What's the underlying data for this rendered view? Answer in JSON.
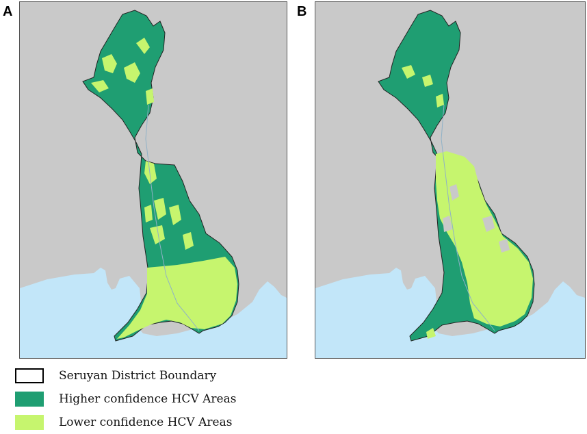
{
  "panels": [
    {
      "label": "A"
    },
    {
      "label": "B"
    }
  ],
  "legend": {
    "items": [
      {
        "label": "Seruyan District Boundary",
        "kind": "boundary",
        "color": "#ffffff",
        "stroke": "#000000"
      },
      {
        "label": "Higher confidence HCV Areas",
        "kind": "higher",
        "color": "#1f9e72"
      },
      {
        "label": "Lower confidence HCV Areas",
        "kind": "lower",
        "color": "#c6f56e"
      }
    ]
  },
  "colors": {
    "land": "#c9c9c9",
    "sea": "#c2e6f9",
    "higher_hcv": "#1f9e72",
    "lower_hcv": "#c6f56e",
    "boundary": "#222222"
  }
}
